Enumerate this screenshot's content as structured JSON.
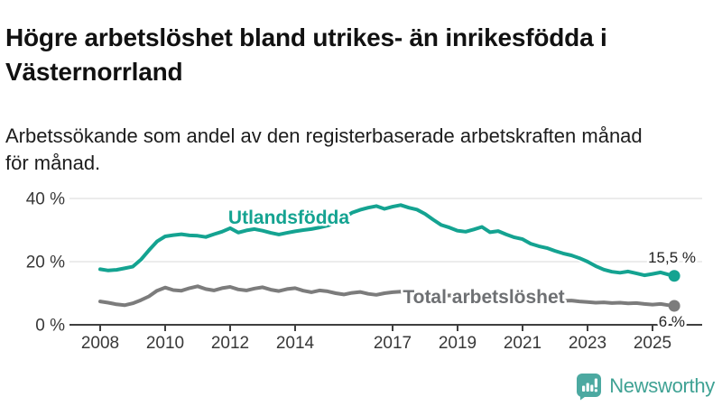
{
  "header": {
    "title_line1": "Högre arbetslöshet bland utrikes- än inrikesfödda i",
    "title_line2": "Västernorrland",
    "subtitle_line1": "Arbetssökande som andel av den registerbaserade arbetskraften månad",
    "subtitle_line2": "för månad."
  },
  "chart_data": {
    "type": "line",
    "title": "Högre arbetslöshet bland utrikes- än inrikesfödda i Västernorrland",
    "subtitle": "Arbetssökande som andel av den registerbaserade arbetskraften månad för månad.",
    "unit": "%",
    "grid": "horizontal",
    "legend": "inline-labels",
    "x_axis": {
      "ticks": [
        2008,
        2010,
        2012,
        2014,
        2017,
        2019,
        2021,
        2023,
        2025
      ],
      "range": [
        2008,
        2025.7
      ]
    },
    "y_axis": {
      "ticks": [
        {
          "value": 0,
          "label": "0 %"
        },
        {
          "value": 20,
          "label": "20 %"
        },
        {
          "value": 40,
          "label": "40 %"
        }
      ],
      "range": [
        0,
        42
      ]
    },
    "series": [
      {
        "name": "Utlandsfödda",
        "color": "#14A391",
        "end_label": "15,5 %",
        "end_value": 15.5,
        "points": [
          [
            2008.0,
            17.6
          ],
          [
            2008.25,
            17.2
          ],
          [
            2008.5,
            17.4
          ],
          [
            2008.75,
            17.9
          ],
          [
            2009.0,
            18.4
          ],
          [
            2009.25,
            20.6
          ],
          [
            2009.5,
            23.6
          ],
          [
            2009.75,
            26.4
          ],
          [
            2010.0,
            28.0
          ],
          [
            2010.25,
            28.4
          ],
          [
            2010.5,
            28.7
          ],
          [
            2010.75,
            28.3
          ],
          [
            2011.0,
            28.2
          ],
          [
            2011.25,
            27.8
          ],
          [
            2011.5,
            28.7
          ],
          [
            2011.75,
            29.5
          ],
          [
            2012.0,
            30.6
          ],
          [
            2012.25,
            29.2
          ],
          [
            2012.5,
            29.9
          ],
          [
            2012.75,
            30.3
          ],
          [
            2013.0,
            29.8
          ],
          [
            2013.25,
            29.1
          ],
          [
            2013.5,
            28.6
          ],
          [
            2013.75,
            29.1
          ],
          [
            2014.0,
            29.6
          ],
          [
            2014.25,
            30.0
          ],
          [
            2014.5,
            30.3
          ],
          [
            2014.75,
            30.8
          ],
          [
            2015.0,
            31.4
          ],
          [
            2015.25,
            32.4
          ],
          [
            2015.5,
            33.9
          ],
          [
            2015.75,
            35.5
          ],
          [
            2016.0,
            36.4
          ],
          [
            2016.25,
            37.1
          ],
          [
            2016.5,
            37.6
          ],
          [
            2016.75,
            36.7
          ],
          [
            2017.0,
            37.4
          ],
          [
            2017.25,
            37.9
          ],
          [
            2017.5,
            37.1
          ],
          [
            2017.75,
            36.5
          ],
          [
            2018.0,
            35.1
          ],
          [
            2018.25,
            33.3
          ],
          [
            2018.5,
            31.6
          ],
          [
            2018.75,
            30.8
          ],
          [
            2019.0,
            29.8
          ],
          [
            2019.25,
            29.5
          ],
          [
            2019.5,
            30.2
          ],
          [
            2019.75,
            31.0
          ],
          [
            2020.0,
            29.3
          ],
          [
            2020.25,
            29.7
          ],
          [
            2020.5,
            28.6
          ],
          [
            2020.75,
            27.7
          ],
          [
            2021.0,
            27.1
          ],
          [
            2021.25,
            25.7
          ],
          [
            2021.5,
            24.9
          ],
          [
            2021.75,
            24.3
          ],
          [
            2022.0,
            23.4
          ],
          [
            2022.25,
            22.6
          ],
          [
            2022.5,
            22.0
          ],
          [
            2022.75,
            21.1
          ],
          [
            2023.0,
            20.0
          ],
          [
            2023.25,
            18.6
          ],
          [
            2023.5,
            17.5
          ],
          [
            2023.75,
            16.8
          ],
          [
            2024.0,
            16.5
          ],
          [
            2024.25,
            16.9
          ],
          [
            2024.5,
            16.3
          ],
          [
            2024.75,
            15.7
          ],
          [
            2025.0,
            16.1
          ],
          [
            2025.25,
            16.6
          ],
          [
            2025.5,
            15.9
          ],
          [
            2025.67,
            15.5
          ]
        ]
      },
      {
        "name": "Total arbetslöshet",
        "color": "#7C7C7C",
        "end_label": "6 %",
        "end_value": 6,
        "points": [
          [
            2008.0,
            7.4
          ],
          [
            2008.25,
            7.0
          ],
          [
            2008.5,
            6.5
          ],
          [
            2008.75,
            6.2
          ],
          [
            2009.0,
            6.8
          ],
          [
            2009.25,
            7.8
          ],
          [
            2009.5,
            9.0
          ],
          [
            2009.75,
            10.8
          ],
          [
            2010.0,
            11.8
          ],
          [
            2010.25,
            11.0
          ],
          [
            2010.5,
            10.8
          ],
          [
            2010.75,
            11.6
          ],
          [
            2011.0,
            12.2
          ],
          [
            2011.25,
            11.3
          ],
          [
            2011.5,
            10.9
          ],
          [
            2011.75,
            11.6
          ],
          [
            2012.0,
            12.0
          ],
          [
            2012.25,
            11.2
          ],
          [
            2012.5,
            10.9
          ],
          [
            2012.75,
            11.5
          ],
          [
            2013.0,
            11.9
          ],
          [
            2013.25,
            11.1
          ],
          [
            2013.5,
            10.7
          ],
          [
            2013.75,
            11.3
          ],
          [
            2014.0,
            11.6
          ],
          [
            2014.25,
            10.8
          ],
          [
            2014.5,
            10.3
          ],
          [
            2014.75,
            10.9
          ],
          [
            2015.0,
            10.6
          ],
          [
            2015.25,
            10.0
          ],
          [
            2015.5,
            9.6
          ],
          [
            2015.75,
            10.1
          ],
          [
            2016.0,
            10.4
          ],
          [
            2016.25,
            9.8
          ],
          [
            2016.5,
            9.5
          ],
          [
            2016.75,
            10.0
          ],
          [
            2017.0,
            10.3
          ],
          [
            2017.25,
            10.5
          ],
          [
            2017.5,
            10.0
          ],
          [
            2017.75,
            9.7
          ],
          [
            2018.0,
            9.5
          ],
          [
            2018.25,
            9.2
          ],
          [
            2018.5,
            9.0
          ],
          [
            2018.75,
            9.3
          ],
          [
            2019.0,
            9.1
          ],
          [
            2019.25,
            8.8
          ],
          [
            2019.5,
            9.0
          ],
          [
            2019.75,
            9.2
          ],
          [
            2020.0,
            9.0
          ],
          [
            2020.25,
            9.7
          ],
          [
            2020.5,
            9.4
          ],
          [
            2020.75,
            9.1
          ],
          [
            2021.0,
            8.8
          ],
          [
            2021.25,
            8.5
          ],
          [
            2021.5,
            8.2
          ],
          [
            2021.75,
            8.0
          ],
          [
            2022.0,
            7.8
          ],
          [
            2022.25,
            7.6
          ],
          [
            2022.5,
            7.7
          ],
          [
            2022.75,
            7.4
          ],
          [
            2023.0,
            7.2
          ],
          [
            2023.25,
            7.0
          ],
          [
            2023.5,
            7.1
          ],
          [
            2023.75,
            6.9
          ],
          [
            2024.0,
            7.0
          ],
          [
            2024.25,
            6.8
          ],
          [
            2024.5,
            6.9
          ],
          [
            2024.75,
            6.6
          ],
          [
            2025.0,
            6.4
          ],
          [
            2025.25,
            6.6
          ],
          [
            2025.5,
            6.2
          ],
          [
            2025.67,
            6.0
          ]
        ]
      }
    ],
    "colors": {
      "grid": "#E1E1E1",
      "axis": "#3F3F3F",
      "tick_label": "#383838",
      "end_label": "#222222"
    }
  },
  "branding": {
    "logo_text": "Newsworthy",
    "logo_text_color": "#3FA294",
    "logo_icon_color": "#4CA9A1"
  }
}
